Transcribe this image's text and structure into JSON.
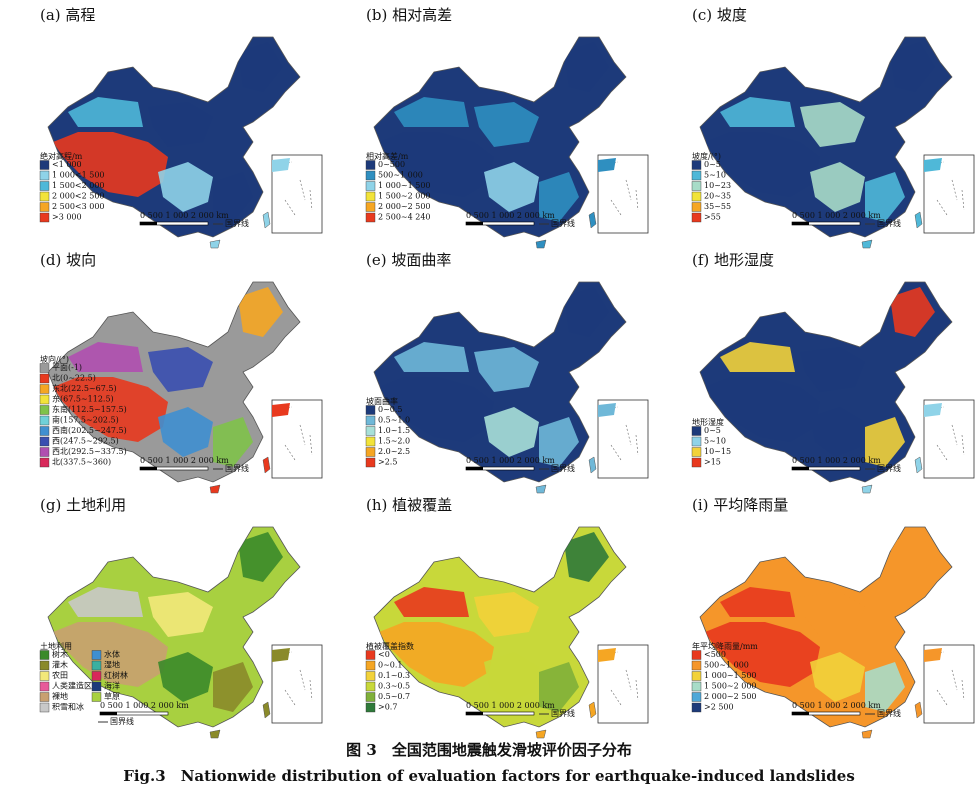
{
  "figure": {
    "panels": [
      {
        "title": "(a) 高程",
        "legend_title": "绝对高程/m",
        "legend": [
          {
            "label": "<1 000",
            "color": "#1d3a7a"
          },
          {
            "label": "1 000<1 500",
            "color": "#8fd3e8"
          },
          {
            "label": "1 500<2 000",
            "color": "#4fb8d8"
          },
          {
            "label": "2 000<2 500",
            "color": "#f2e33a"
          },
          {
            "label": "2 500<3 000",
            "color": "#f5a623"
          },
          {
            "label": ">3 000",
            "color": "#e8391e"
          }
        ]
      },
      {
        "title": "(b) 相对高差",
        "legend_title": "相对高差/m",
        "legend": [
          {
            "label": "0~500",
            "color": "#1d3a7a"
          },
          {
            "label": "500~1 000",
            "color": "#2f8fc0"
          },
          {
            "label": "1 000~1 500",
            "color": "#8fd3e8"
          },
          {
            "label": "1 500~2 000",
            "color": "#f2e33a"
          },
          {
            "label": "2 000~2 500",
            "color": "#f5a623"
          },
          {
            "label": "2 500~4 240",
            "color": "#e8391e"
          }
        ]
      },
      {
        "title": "(c) 坡度",
        "legend_title": "坡度/(°)",
        "legend": [
          {
            "label": "0~5",
            "color": "#1d3a7a"
          },
          {
            "label": "5~10",
            "color": "#4fb8d8"
          },
          {
            "label": "10~23",
            "color": "#a8dcc8"
          },
          {
            "label": "20~35",
            "color": "#f2e33a"
          },
          {
            "label": "35~55",
            "color": "#f5a623"
          },
          {
            "label": ">55",
            "color": "#e8391e"
          }
        ]
      },
      {
        "title": "(d) 坡向",
        "legend_title": "坡向/(°)",
        "legend": [
          {
            "label": "平面(-1)",
            "color": "#9a9a9a"
          },
          {
            "label": "北(0~22.5)",
            "color": "#e8391e"
          },
          {
            "label": "东北(22.5~67.5)",
            "color": "#f5a623"
          },
          {
            "label": "东(67.5~112.5)",
            "color": "#f2e33a"
          },
          {
            "label": "东南(112.5~157.5)",
            "color": "#7fc24a"
          },
          {
            "label": "南(157.5~202.5)",
            "color": "#6fd0d8"
          },
          {
            "label": "西南(202.5~247.5)",
            "color": "#3f8fd0"
          },
          {
            "label": "西(247.5~292.5)",
            "color": "#3a4fb0"
          },
          {
            "label": "西北(292.5~337.5)",
            "color": "#b04fb0"
          },
          {
            "label": "北(337.5~360)",
            "color": "#d8285a"
          }
        ]
      },
      {
        "title": "(e) 坡面曲率",
        "legend_title": "坡面曲率",
        "legend": [
          {
            "label": "0~0.5",
            "color": "#1d3a7a"
          },
          {
            "label": "0.5~1.0",
            "color": "#6fb8d8"
          },
          {
            "label": "1.0~1.5",
            "color": "#a8e0d8"
          },
          {
            "label": "1.5~2.0",
            "color": "#f2e33a"
          },
          {
            "label": "2.0~2.5",
            "color": "#f5a623"
          },
          {
            "label": ">2.5",
            "color": "#e8391e"
          }
        ]
      },
      {
        "title": "(f) 地形湿度",
        "legend_title": "地形湿度",
        "legend": [
          {
            "label": "0~5",
            "color": "#1d3a7a"
          },
          {
            "label": "5~10",
            "color": "#8fd3e8"
          },
          {
            "label": "10~15",
            "color": "#f2d23a"
          },
          {
            "label": ">15",
            "color": "#e8391e"
          }
        ]
      },
      {
        "title": "(g) 土地利用",
        "legend_title": "土地利用",
        "legend": [
          {
            "label": "树木",
            "color": "#3a8a2a"
          },
          {
            "label": "灌木",
            "color": "#8a8a2a"
          },
          {
            "label": "农田",
            "color": "#f2e87a"
          },
          {
            "label": "人类建造区",
            "color": "#e85a9a"
          },
          {
            "label": "裸地",
            "color": "#c8a070"
          },
          {
            "label": "积雪和冰",
            "color": "#c8c8c8"
          },
          {
            "label": "水体",
            "color": "#3f8fd0"
          },
          {
            "label": "湿地",
            "color": "#3ab0a0"
          },
          {
            "label": "红树林",
            "color": "#d8285a"
          },
          {
            "label": "海洋",
            "color": "#1d3a7a"
          },
          {
            "label": "草原",
            "color": "#a8d040"
          }
        ]
      },
      {
        "title": "(h) 植被覆盖",
        "legend_title": "植被覆盖指数",
        "legend": [
          {
            "label": "<0",
            "color": "#e8391e"
          },
          {
            "label": "0~0.1",
            "color": "#f5a623"
          },
          {
            "label": "0.1~0.3",
            "color": "#f2d23a"
          },
          {
            "label": "0.3~0.5",
            "color": "#c8d83a"
          },
          {
            "label": "0.5~0.7",
            "color": "#7fb03a"
          },
          {
            "label": ">0.7",
            "color": "#2f7a3a"
          }
        ]
      },
      {
        "title": "(i) 平均降雨量",
        "legend_title": "年平均降雨量/mm",
        "legend": [
          {
            "label": "<500",
            "color": "#e8391e"
          },
          {
            "label": "500~1 000",
            "color": "#f5962a"
          },
          {
            "label": "1 000~1 500",
            "color": "#f2d23a"
          },
          {
            "label": "1 500~2 000",
            "color": "#a8dcc8"
          },
          {
            "label": "2 000~2 500",
            "color": "#4fa8d8"
          },
          {
            "label": ">2 500",
            "color": "#1d3a7a"
          }
        ]
      }
    ],
    "scale_bar": "0 500 1 000 2 000 km",
    "boundary_label": "国界线",
    "caption_cn": "图 3　全国范围地震触发滑坡评价因子分布",
    "caption_en": "Fig.3　Nationwide distribution of evaluation factors for earthquake-induced landslides"
  }
}
